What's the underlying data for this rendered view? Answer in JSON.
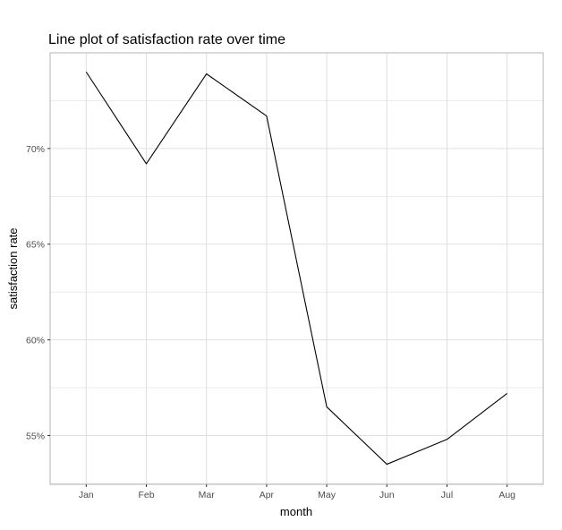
{
  "chart_data": {
    "type": "line",
    "title": "Line plot of satisfaction rate over time",
    "xlabel": "month",
    "ylabel": "satisfaction rate",
    "categories": [
      "Jan",
      "Feb",
      "Mar",
      "Apr",
      "May",
      "Jun",
      "Jul",
      "Aug"
    ],
    "series": [
      {
        "values": [
          74.0,
          69.2,
          73.9,
          71.7,
          56.5,
          53.5,
          54.8,
          57.2
        ]
      }
    ],
    "y_ticks": [
      55,
      60,
      65,
      70
    ],
    "y_tick_labels": [
      "55%",
      "60%",
      "65%",
      "70%"
    ],
    "ylim": [
      52.45,
      75.0
    ],
    "grid": true,
    "legend": "none",
    "colors": {
      "line": "#000000",
      "grid": "#e0e0e0",
      "panel_border": "#b3b3b3",
      "tick_text": "#4d4d4d"
    }
  }
}
